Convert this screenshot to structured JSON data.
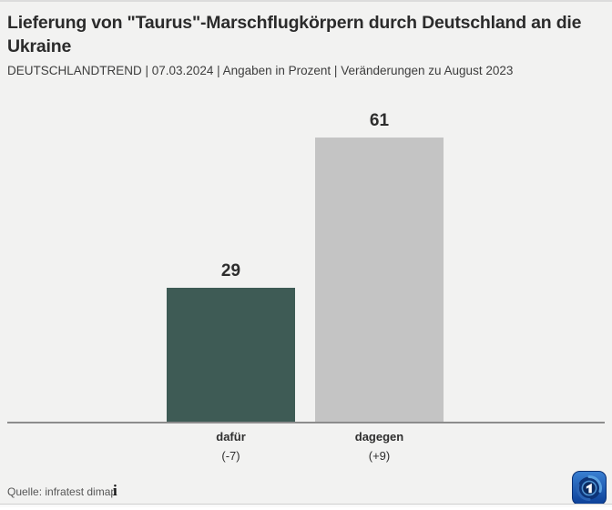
{
  "header": {
    "title": "Lieferung von \"Taurus\"-Marschflugkörpern durch Deutschland an die Ukraine",
    "subtitle": "DEUTSCHLANDTREND | 07.03.2024 | Angaben in Prozent | Veränderungen zu August 2023"
  },
  "chart_data": {
    "type": "bar",
    "title": "Lieferung von \"Taurus\"-Marschflugkörpern durch Deutschland an die Ukraine",
    "subtitle": "DEUTSCHLANDTREND | 07.03.2024 | Angaben in Prozent | Veränderungen zu August 2023",
    "categories": [
      "dafür",
      "dagegen"
    ],
    "values": [
      29,
      61
    ],
    "changes": [
      "(-7)",
      "(+9)"
    ],
    "units": "Prozent",
    "comparison_period": "August 2023",
    "bar_colors": [
      "#3e5b55",
      "#c4c4c4"
    ],
    "value_label_color": "#2d2d2d",
    "background_color": "#f2f2f1",
    "baseline_color": "#8c8c8c",
    "ylim": [
      0,
      70
    ],
    "grid": false,
    "legend": false
  },
  "footer": {
    "source": "Quelle: infratest dimap",
    "info_icon_glyph": "i",
    "logo_name": "tagesschau-ard-logo"
  }
}
